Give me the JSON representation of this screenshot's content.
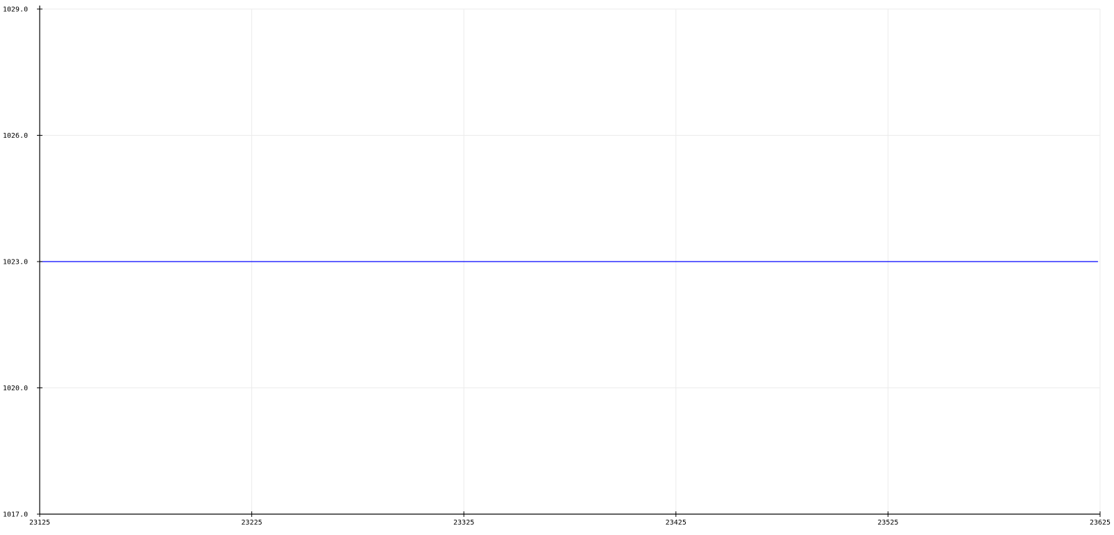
{
  "chart_data": {
    "type": "line",
    "title": "",
    "xlabel": "",
    "ylabel": "",
    "xlim": [
      23125,
      23625
    ],
    "ylim": [
      1017.0,
      1029.0
    ],
    "x_ticks": [
      23125,
      23225,
      23325,
      23425,
      23525,
      23625
    ],
    "x_tick_labels": [
      "23125",
      "23225",
      "23325",
      "23425",
      "23525",
      "23625"
    ],
    "y_ticks": [
      1017.0,
      1020.0,
      1023.0,
      1026.0,
      1029.0
    ],
    "y_tick_labels": [
      "1017.0",
      "1020.0",
      "1023.0",
      "1026.0",
      "1029.0"
    ],
    "grid": true,
    "series": [
      {
        "color": "#0000ff",
        "x": [
          23125,
          23624
        ],
        "y": [
          1023.0,
          1023.0
        ]
      }
    ]
  },
  "colors": {
    "axis": "#000000",
    "grid": "#ebebeb",
    "background": "#ffffff"
  }
}
